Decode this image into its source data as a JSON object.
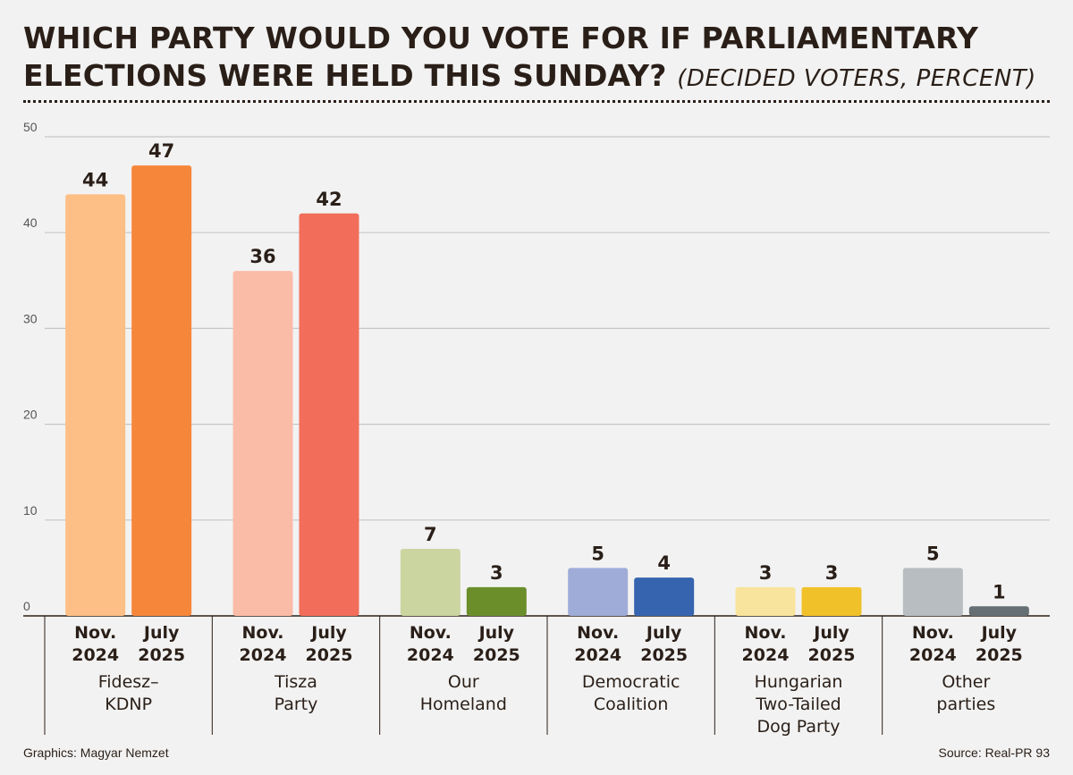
{
  "header": {
    "title": "WHICH PARTY WOULD YOU VOTE FOR IF PARLIAMENTARY ELECTIONS WERE HELD THIS SUNDAY?",
    "subtitle": "(DECIDED VOTERS, PERCENT)"
  },
  "footer": {
    "credit": "Graphics: Magyar Nemzet",
    "source": "Source: Real-PR 93"
  },
  "chart_data": {
    "type": "bar",
    "title": "WHICH PARTY WOULD YOU VOTE FOR IF PARLIAMENTARY ELECTIONS WERE HELD THIS SUNDAY?",
    "subtitle": "(DECIDED VOTERS, PERCENT)",
    "xlabel": "",
    "ylabel": "",
    "ylim": [
      0,
      50
    ],
    "yticks": [
      0,
      10,
      20,
      30,
      40,
      50
    ],
    "grid": true,
    "periods": [
      "Nov. 2024",
      "July 2025"
    ],
    "categories": [
      {
        "name": "Fidesz– KDNP",
        "lines": [
          "Fidesz–",
          "KDNP"
        ],
        "values": [
          44,
          47
        ],
        "colors": [
          "#fdbf85",
          "#f6873a"
        ]
      },
      {
        "name": "Tisza Party",
        "lines": [
          "Tisza",
          "Party"
        ],
        "values": [
          36,
          42
        ],
        "colors": [
          "#fbbca7",
          "#f26e5a"
        ]
      },
      {
        "name": "Our Homeland",
        "lines": [
          "Our",
          "Homeland"
        ],
        "values": [
          7,
          3
        ],
        "colors": [
          "#cbd5a0",
          "#6b8e2b"
        ]
      },
      {
        "name": "Democratic Coalition",
        "lines": [
          "Democratic",
          "Coalition"
        ],
        "values": [
          5,
          4
        ],
        "colors": [
          "#a0acd8",
          "#3664ae"
        ]
      },
      {
        "name": "Hungarian Two-Tailed Dog Party",
        "lines": [
          "Hungarian",
          "Two-Tailed",
          "Dog Party"
        ],
        "values": [
          3,
          3
        ],
        "colors": [
          "#f8e49c",
          "#f1c12a"
        ]
      },
      {
        "name": "Other parties",
        "lines": [
          "Other",
          "parties"
        ],
        "values": [
          5,
          1
        ],
        "colors": [
          "#b7bdc0",
          "#666f73"
        ]
      }
    ]
  }
}
